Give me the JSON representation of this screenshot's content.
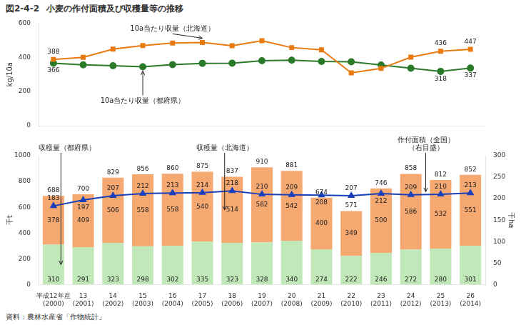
{
  "chart_data": [
    {
      "type": "line",
      "subtitle": "図2-4-2",
      "title": "小麦の作付面積及び収穫量等の推移",
      "categories": [
        [
          "平成12年産",
          "(2000)"
        ],
        [
          "13",
          "(2001)"
        ],
        [
          "14",
          "(2002)"
        ],
        [
          "15",
          "(2003)"
        ],
        [
          "16",
          "(2004)"
        ],
        [
          "17",
          "(2005)"
        ],
        [
          "18",
          "(2006)"
        ],
        [
          "19",
          "(2007)"
        ],
        [
          "20",
          "(2008)"
        ],
        [
          "21",
          "(2009)"
        ],
        [
          "22",
          "(2010)"
        ],
        [
          "23",
          "(2011)"
        ],
        [
          "24",
          "(2012)"
        ],
        [
          "25",
          "(2013)"
        ],
        [
          "26",
          "(2014)"
        ]
      ],
      "tick_labels": "y",
      "ylabel": "kg/10a",
      "ylim": [
        0,
        600
      ],
      "yticks": [
        0,
        200,
        400,
        600
      ],
      "grid": false,
      "data_labels": true,
      "series": [
        {
          "name": "10a当たり収量（北海道）",
          "color": "#E87A10",
          "marker": "square",
          "values": [
            388,
            400,
            448,
            469,
            484,
            487,
            468,
            497,
            457,
            444,
            309,
            335,
            401,
            436,
            447
          ],
          "value_labels": [
            "388",
            null,
            null,
            null,
            null,
            null,
            null,
            null,
            null,
            null,
            null,
            null,
            null,
            "436",
            "447"
          ]
        },
        {
          "name": "10a当たり収量（都府県）",
          "color": "#2A7A2A",
          "marker": "circle",
          "values": [
            366,
            356,
            351,
            345,
            357,
            365,
            366,
            380,
            383,
            376,
            374,
            355,
            336,
            318,
            337
          ],
          "value_labels": [
            "366",
            null,
            null,
            null,
            null,
            null,
            null,
            null,
            null,
            null,
            null,
            null,
            null,
            "318",
            "337"
          ]
        }
      ]
    },
    {
      "type": "bar",
      "stacked": true,
      "categories": [
        [
          "平成12年産",
          "(2000)"
        ],
        [
          "13",
          "(2001)"
        ],
        [
          "14",
          "(2002)"
        ],
        [
          "15",
          "(2003)"
        ],
        [
          "16",
          "(2004)"
        ],
        [
          "17",
          "(2005)"
        ],
        [
          "18",
          "(2006)"
        ],
        [
          "19",
          "(2007)"
        ],
        [
          "20",
          "(2008)"
        ],
        [
          "21",
          "(2009)"
        ],
        [
          "22",
          "(2010)"
        ],
        [
          "23",
          "(2011)"
        ],
        [
          "24",
          "(2012)"
        ],
        [
          "25",
          "(2013)"
        ],
        [
          "26",
          "(2014)"
        ]
      ],
      "ylabel": "千t",
      "ylim": [
        0,
        1000
      ],
      "yticks": [
        0,
        200,
        400,
        600,
        800,
        1000
      ],
      "y2label": "千ha",
      "y2lim": [
        0,
        300
      ],
      "y2ticks": [
        0,
        50,
        100,
        150,
        200,
        250,
        300
      ],
      "grid": false,
      "data_labels": true,
      "series": [
        {
          "name": "収穫量（都府県）",
          "color": "#C0E8B8",
          "values": [
            310,
            291,
            323,
            298,
            302,
            335,
            323,
            328,
            340,
            274,
            222,
            246,
            272,
            280,
            301
          ]
        },
        {
          "name": "収穫量（北海道）",
          "color": "#F5A870",
          "values": [
            378,
            409,
            506,
            558,
            558,
            540,
            514,
            582,
            542,
            400,
            349,
            500,
            586,
            532,
            551
          ]
        },
        {
          "name": "作付面積（全国）\n（右目盛）",
          "type": "line",
          "axis": "y2",
          "color": "#1A3FBB",
          "marker": "triangle",
          "values": [
            183,
            197,
            207,
            212,
            213,
            214,
            218,
            210,
            209,
            208,
            207,
            212,
            209,
            210,
            213
          ]
        }
      ],
      "totals": [
        688,
        700,
        829,
        856,
        860,
        875,
        837,
        910,
        881,
        674,
        571,
        746,
        858,
        812,
        852
      ],
      "source": "資料：農林水産省「作物統計」"
    }
  ]
}
